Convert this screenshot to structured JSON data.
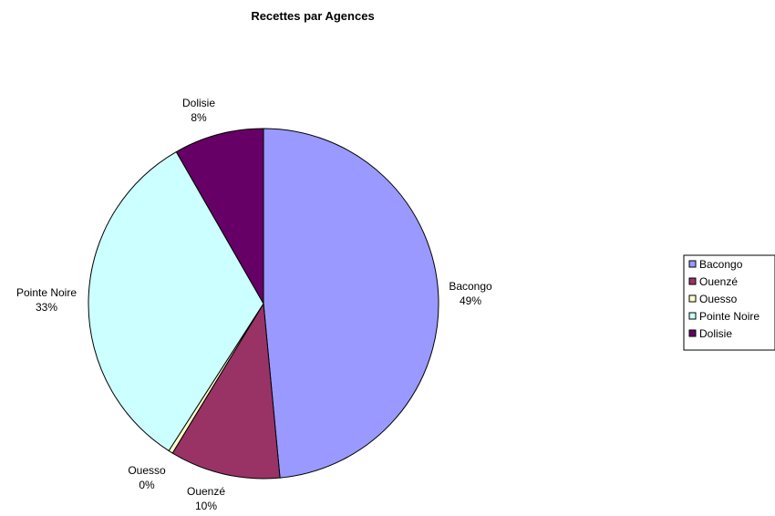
{
  "chart_data": {
    "type": "pie",
    "title": "Recettes par Agences",
    "categories": [
      "Bacongo",
      "Ouenzé",
      "Ouesso",
      "Pointe Noire",
      "Dolisie"
    ],
    "values": [
      49,
      10,
      0,
      33,
      8
    ],
    "shares": [
      0.485,
      0.102,
      0.004,
      0.326,
      0.083
    ],
    "percent_labels": [
      "49%",
      "10%",
      "0%",
      "33%",
      "8%"
    ],
    "colors": [
      "#9999ff",
      "#993366",
      "#ffffcc",
      "#ccffff",
      "#660066"
    ],
    "legend": {
      "placement": "right",
      "entries": [
        "Bacongo",
        "Ouenzé",
        "Ouesso",
        "Pointe Noire",
        "Dolisie"
      ]
    }
  }
}
